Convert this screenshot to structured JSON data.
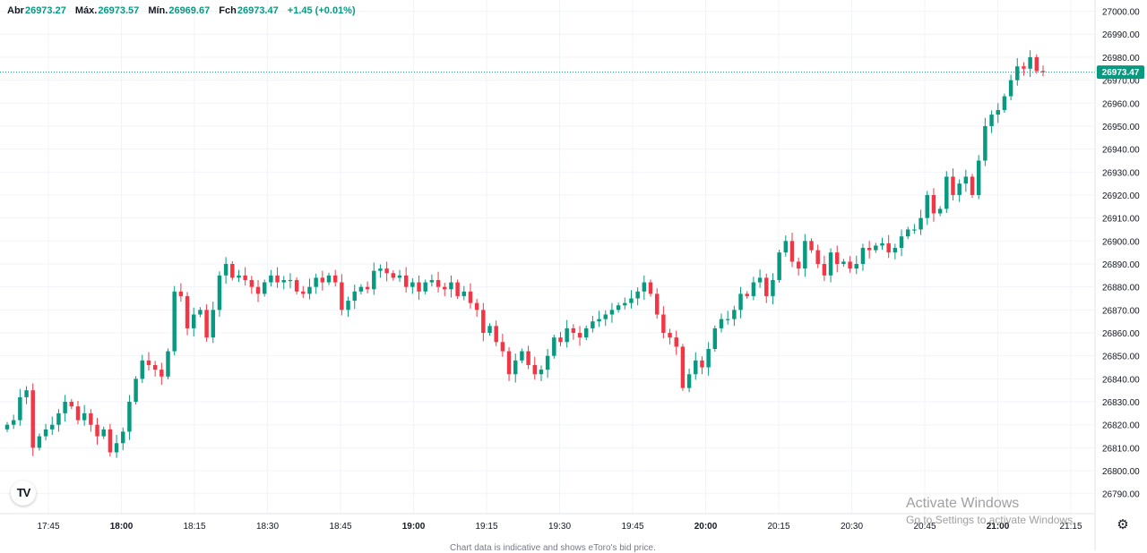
{
  "ohlc": {
    "open_label": "Abr",
    "open": "26973.27",
    "high_label": "Máx.",
    "high": "26973.57",
    "low_label": "Mín.",
    "low": "26969.67",
    "close_label": "Fch",
    "close": "26973.47",
    "change": "+1.45 (+0.01%)"
  },
  "price_tag": "26973.47",
  "colors": {
    "up": "#089981",
    "down": "#f23645",
    "grid": "#f0f3fa",
    "text": "#131722"
  },
  "icons": {
    "logo": "tradingview-logo-icon",
    "settings": "gear-icon"
  },
  "logo_text": "TV",
  "settings_glyph": "⚙",
  "watermark": {
    "line1": "Activate Windows",
    "line2": "Go to Settings to activate Windows."
  },
  "footer_note": "Chart data is indicative and shows eToro's bid price.",
  "chart_data": {
    "type": "candlestick",
    "y_ticks": [
      "26790.00",
      "26800.00",
      "26810.00",
      "26820.00",
      "26830.00",
      "26840.00",
      "26850.00",
      "26860.00",
      "26870.00",
      "26880.00",
      "26890.00",
      "26900.00",
      "26910.00",
      "26920.00",
      "26930.00",
      "26940.00",
      "26950.00",
      "26960.00",
      "26970.00",
      "26980.00",
      "26990.00",
      "27000.00"
    ],
    "ylim": [
      26786,
      27001
    ],
    "x_ticks": [
      {
        "label": "17:45",
        "bold": false
      },
      {
        "label": "18:00",
        "bold": true
      },
      {
        "label": "18:15",
        "bold": false
      },
      {
        "label": "18:30",
        "bold": false
      },
      {
        "label": "18:45",
        "bold": false
      },
      {
        "label": "19:00",
        "bold": true
      },
      {
        "label": "19:15",
        "bold": false
      },
      {
        "label": "19:30",
        "bold": false
      },
      {
        "label": "19:45",
        "bold": false
      },
      {
        "label": "20:00",
        "bold": true
      },
      {
        "label": "20:15",
        "bold": false
      },
      {
        "label": "20:30",
        "bold": false
      },
      {
        "label": "20:45",
        "bold": false
      },
      {
        "label": "21:00",
        "bold": true
      },
      {
        "label": "21:15",
        "bold": false
      }
    ],
    "last_price": 26973.47,
    "grid": true,
    "close_series": [
      26820,
      26822,
      26832,
      26835,
      26810,
      26815,
      26818,
      26820,
      26825,
      26830,
      26828,
      26822,
      26825,
      26820,
      26815,
      26818,
      26808,
      26812,
      26817,
      26830,
      26840,
      26848,
      26846,
      26844,
      26841,
      26852,
      26878,
      26876,
      26862,
      26868,
      26870,
      26858,
      26870,
      26885,
      26890,
      26884,
      26885,
      26883,
      26880,
      26877,
      26882,
      26885,
      26882,
      26883,
      26883,
      26878,
      26877,
      26880,
      26884,
      26882,
      26885,
      26882,
      26870,
      26874,
      26878,
      26880,
      26879,
      26887,
      26888,
      26886,
      26884,
      26885,
      26880,
      26882,
      26878,
      26882,
      26883,
      26880,
      26879,
      26882,
      26876,
      26878,
      26873,
      26870,
      26860,
      26863,
      26856,
      26852,
      26842,
      26848,
      26852,
      26846,
      26842,
      26844,
      26850,
      26858,
      26856,
      26862,
      26860,
      26858,
      26862,
      26865,
      26866,
      26868,
      26870,
      26872,
      26873,
      26875,
      26878,
      26882,
      26877,
      26868,
      26860,
      26858,
      26854,
      26836,
      26842,
      26848,
      26845,
      26853,
      26862,
      26866,
      26866,
      26870,
      26877,
      26876,
      26882,
      26884,
      26876,
      26883,
      26895,
      26900,
      26891,
      26888,
      26900,
      26896,
      26890,
      26885,
      26895,
      26890,
      26891,
      26888,
      26890,
      26897,
      26896,
      26898,
      26899,
      26895,
      26897,
      26902,
      26905,
      26905,
      26910,
      26920,
      26912,
      26914,
      26928,
      26920,
      26925,
      26928,
      26920,
      26935,
      26950,
      26955,
      26957,
      26963,
      26970,
      26976,
      26975,
      26980,
      26974,
      26973.47
    ]
  }
}
